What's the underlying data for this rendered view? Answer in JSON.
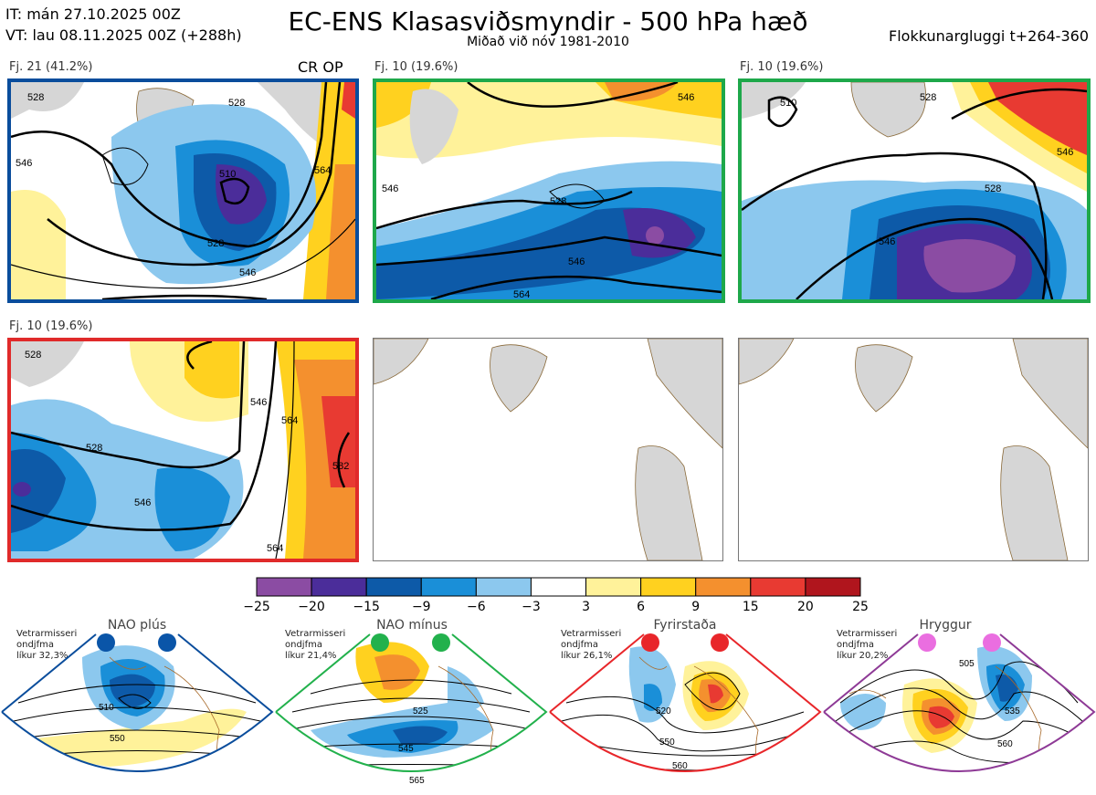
{
  "header": {
    "init_line": "IT: mán 27.10.2025 00Z",
    "valid_line": "VT: lau 08.11.2025 00Z  (+288h)",
    "title": "EC-ENS Klasasviðsmyndir - 500 hPa hæð",
    "subtitle": "Miðað við nóv 1981-2010",
    "window": "Flokkunargluggi t+264-360"
  },
  "panels": [
    {
      "caption": "Fj. 21 (41.2%)",
      "border": "#0a4d9c",
      "extra_label": "CR OP",
      "contours": [
        "528",
        "510",
        "528",
        "546",
        "564",
        "546",
        "528"
      ]
    },
    {
      "caption": "Fj. 10 (19.6%)",
      "border": "#1ea84a",
      "contours": [
        "546",
        "528",
        "546",
        "546",
        "564"
      ]
    },
    {
      "caption": "Fj. 10 (19.6%)",
      "border": "#1ea84a",
      "contours": [
        "510",
        "528",
        "528",
        "546",
        "546"
      ]
    },
    {
      "caption": "Fj. 10 (19.6%)",
      "border": "#e02a2a",
      "contours": [
        "528",
        "528",
        "546",
        "546",
        "564",
        "582",
        "564"
      ]
    }
  ],
  "colorbar": {
    "ticks": [
      "−25",
      "−20",
      "−15",
      "−9",
      "−6",
      "−3",
      "3",
      "6",
      "9",
      "15",
      "20",
      "25"
    ],
    "colors": [
      "#8b4ca3",
      "#4b2d9a",
      "#0d5aa8",
      "#1a8fd8",
      "#8cc8ee",
      "#ffffff",
      "#fff29a",
      "#ffd11f",
      "#f4902e",
      "#e83a32",
      "#b0151d"
    ]
  },
  "regimes": [
    {
      "name": "NAO plús",
      "info": [
        "Vetrarmisseri",
        "ondjfma",
        "líkur 32,3%"
      ],
      "dot_color": "#0a55a8",
      "border": "#0a4d9c",
      "labels": [
        "510",
        "550"
      ]
    },
    {
      "name": "NAO mínus",
      "info": [
        "Vetrarmisseri",
        "ondjfma",
        "líkur 21,4%"
      ],
      "dot_color": "#22b14c",
      "border": "#22b14c",
      "labels": [
        "525",
        "545",
        "565"
      ]
    },
    {
      "name": "Fyrirstaða",
      "info": [
        "Vetrarmisseri",
        "ondjfma",
        "líkur 26,1%"
      ],
      "dot_color": "#e8262a",
      "border": "#e8262a",
      "labels": [
        "520",
        "550",
        "560"
      ]
    },
    {
      "name": "Hryggur",
      "info": [
        "Vetrarmisseri",
        "ondjfma",
        "líkur 20,2%"
      ],
      "dot_color": "#ea6ee0",
      "border": "#8e3a96",
      "labels": [
        "505",
        "535",
        "560"
      ]
    }
  ]
}
